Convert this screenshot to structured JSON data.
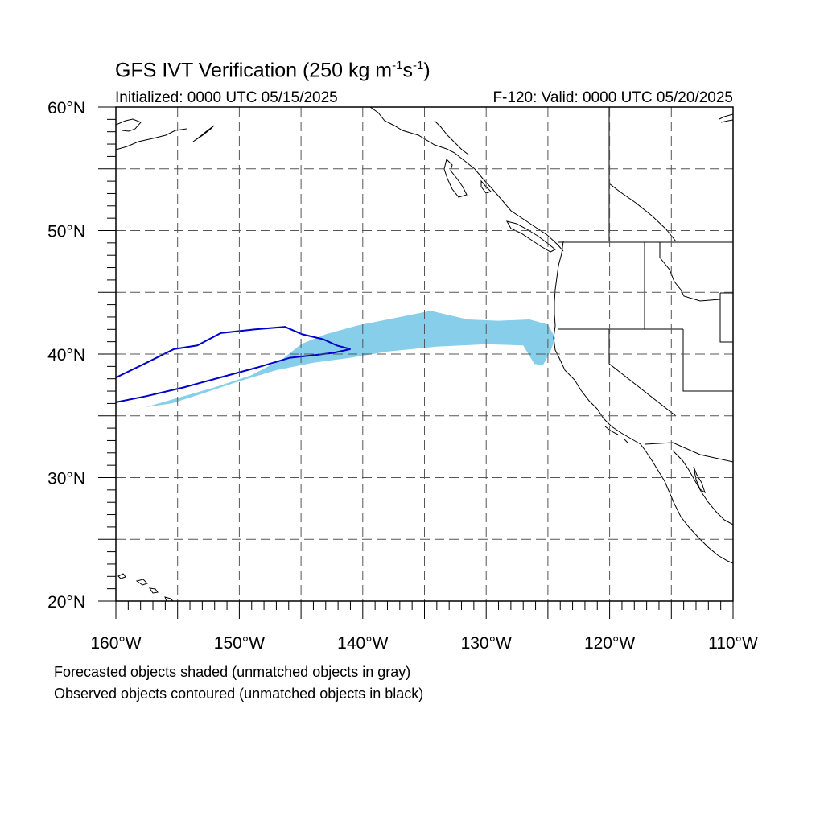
{
  "title_main": "GFS IVT Verification (250 kg m",
  "title_exp1": "-1",
  "title_mid": "s",
  "title_exp2": "-1",
  "title_end": ")",
  "initialized": "Initialized: 0000 UTC 05/15/2025",
  "valid": "F-120: Valid: 0000 UTC 05/20/2025",
  "notes": [
    "Forecasted objects shaded (unmatched objects in gray)",
    "Observed objects contoured (unmatched objects in black)"
  ],
  "map": {
    "lon_range": [
      -160,
      -110
    ],
    "lat_range": [
      20,
      60
    ],
    "grid": "dashed every 5 degrees",
    "lat_ticks": [
      {
        "value": 60,
        "label": "60°N"
      },
      {
        "value": 50,
        "label": "50°N"
      },
      {
        "value": 40,
        "label": "40°N"
      },
      {
        "value": 30,
        "label": "30°N"
      },
      {
        "value": 20,
        "label": "20°N"
      }
    ],
    "lon_ticks": [
      {
        "value": -160,
        "label": "160°W"
      },
      {
        "value": -150,
        "label": "150°W"
      },
      {
        "value": -140,
        "label": "140°W"
      },
      {
        "value": -130,
        "label": "130°W"
      },
      {
        "value": -120,
        "label": "120°W"
      },
      {
        "value": -110,
        "label": "110°W"
      }
    ],
    "colors": {
      "forecast_fill": "#87ceeb",
      "observed_contour": "#0000cc",
      "coastline": "#000000",
      "grid": "#555555"
    },
    "forecast_object": [
      [
        -157.6,
        35.7
      ],
      [
        -155.5,
        36.3
      ],
      [
        -152,
        37.3
      ],
      [
        -149,
        38.3
      ],
      [
        -146.5,
        39.6
      ],
      [
        -145,
        40.8
      ],
      [
        -143,
        41.6
      ],
      [
        -140.5,
        42.3
      ],
      [
        -137,
        43.0
      ],
      [
        -134.5,
        43.5
      ],
      [
        -131.5,
        42.8
      ],
      [
        -129,
        42.7
      ],
      [
        -126.5,
        42.8
      ],
      [
        -125.0,
        42.4
      ],
      [
        -124.4,
        41.3
      ],
      [
        -124.8,
        40.2
      ],
      [
        -125.4,
        39.1
      ],
      [
        -126.1,
        39.2
      ],
      [
        -127,
        40.7
      ],
      [
        -130,
        40.8
      ],
      [
        -134,
        40.6
      ],
      [
        -138,
        40.2
      ],
      [
        -141,
        39.7
      ],
      [
        -144,
        39.3
      ],
      [
        -147,
        38.7
      ],
      [
        -150,
        37.8
      ],
      [
        -153,
        36.8
      ],
      [
        -155.5,
        36.0
      ],
      [
        -157.6,
        35.7
      ]
    ],
    "observed_object": [
      [
        -160,
        38.1
      ],
      [
        -157.5,
        39.3
      ],
      [
        -155.3,
        40.4
      ],
      [
        -153.4,
        40.7
      ],
      [
        -151.5,
        41.7
      ],
      [
        -148.7,
        42.0
      ],
      [
        -146.3,
        42.2
      ],
      [
        -144.9,
        41.6
      ],
      [
        -143.2,
        41.2
      ],
      [
        -142.1,
        40.7
      ],
      [
        -141.0,
        40.4
      ],
      [
        -142.4,
        40.1
      ],
      [
        -144.0,
        39.9
      ],
      [
        -145.9,
        39.7
      ],
      [
        -148.6,
        38.9
      ],
      [
        -151.2,
        38.2
      ],
      [
        -154.5,
        37.3
      ],
      [
        -157.5,
        36.6
      ],
      [
        -160,
        36.1
      ]
    ]
  }
}
